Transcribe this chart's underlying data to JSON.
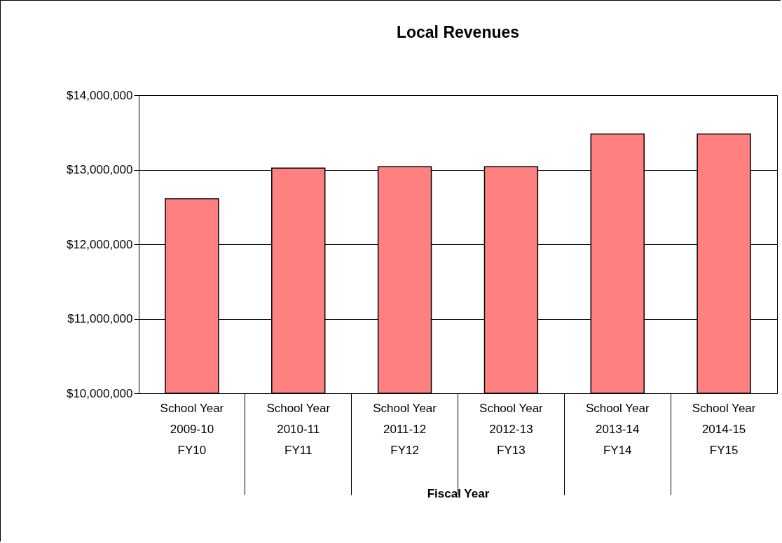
{
  "chart_data": {
    "type": "bar",
    "title": "Local Revenues",
    "xlabel": "Fiscal Year",
    "categories": [
      "School Year\n2009-10\nFY10",
      "School Year\n2010-11\nFY11",
      "School Year\n2011-12\nFY12",
      "School Year\n2012-13\nFY13",
      "School Year\n2013-14\nFY14",
      "School Year\n2014-15\nFY15"
    ],
    "values": [
      12610000,
      13020000,
      13040000,
      13040000,
      13480000,
      13480000
    ],
    "color": "#ff8080",
    "ylim": [
      10000000,
      14000000
    ],
    "yticks": [
      {
        "value": 10000000,
        "label": "$10,000,000"
      },
      {
        "value": 11000000,
        "label": "$11,000,000"
      },
      {
        "value": 12000000,
        "label": "$12,000,000"
      },
      {
        "value": 13000000,
        "label": "$13,000,000"
      },
      {
        "value": 14000000,
        "label": "$14,000,000"
      }
    ],
    "grid": "y"
  }
}
